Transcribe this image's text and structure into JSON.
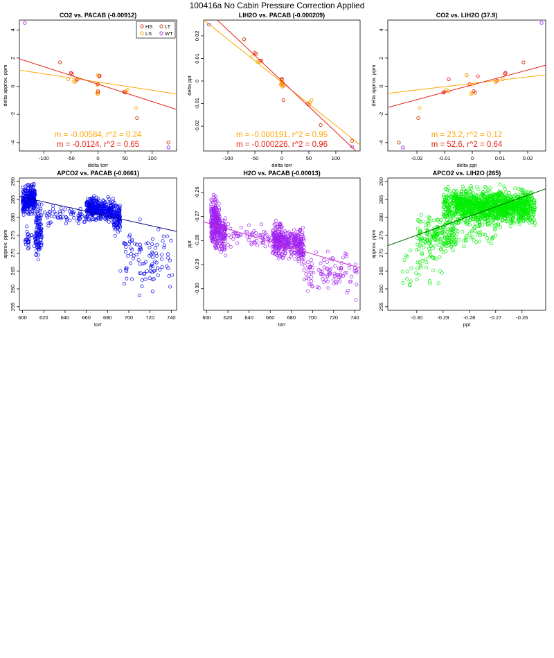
{
  "figure_title": "100416a   No Cabin Pressure Correction Applied",
  "chart_data": [
    {
      "type": "scatter",
      "title": "CO2 vs. PACAB (-0.00912)",
      "xlabel": "delta torr",
      "ylabel": "delta approx. ppm",
      "xlim": [
        -145,
        145
      ],
      "ylim": [
        -4.6,
        4.7
      ],
      "xticks": [
        -100,
        -50,
        0,
        50,
        100
      ],
      "yticks": [
        -4,
        -2,
        0,
        2,
        4
      ],
      "legend": {
        "placement": "top-right",
        "entries": [
          {
            "label": "HS",
            "color": "#e51e10"
          },
          {
            "label": "LT",
            "color": "#cc3300"
          },
          {
            "label": "LS",
            "color": "#ffa500"
          },
          {
            "label": "WT",
            "color": "#a020f0"
          }
        ]
      },
      "series": [
        {
          "color": "#e51e10",
          "points": [
            [
              -50,
              0.95
            ],
            [
              -48,
              0.9
            ],
            [
              -40,
              0.45
            ],
            [
              -38,
              0.5
            ],
            [
              0,
              0.15
            ],
            [
              2,
              0.7
            ],
            [
              3,
              0.75
            ],
            [
              0,
              -0.35
            ],
            [
              0,
              -0.45
            ],
            [
              50,
              -0.45
            ],
            [
              48,
              -0.4
            ]
          ]
        },
        {
          "color": "#ffa500",
          "points": [
            [
              -55,
              0.5
            ],
            [
              -45,
              0.35
            ],
            [
              -42,
              0.3
            ],
            [
              0,
              0.8
            ],
            [
              0,
              -0.55
            ],
            [
              -2,
              -0.5
            ],
            [
              52,
              -0.35
            ],
            [
              55,
              -0.25
            ],
            [
              70,
              -1.55
            ],
            [
              -1,
              0.1
            ]
          ]
        },
        {
          "color": "#cc3300",
          "points": [
            [
              -70,
              1.7
            ],
            [
              72,
              -2.25
            ],
            [
              130,
              -4.0
            ]
          ]
        },
        {
          "color": "#a020f0",
          "points": [
            [
              -135,
              4.5
            ],
            [
              130,
              -4.35
            ]
          ]
        }
      ],
      "fits": [
        {
          "color": "#ffa500",
          "slope": -0.00584,
          "intercept": 0.3
        },
        {
          "color": "#e51e10",
          "slope": -0.0124,
          "intercept": 0.15
        }
      ],
      "annotations": [
        {
          "text": "m = -0.00584, r^2 = 0.24",
          "color": "#ffa500"
        },
        {
          "text": "m = -0.0124, r^2 = 0.65",
          "color": "#e51e10"
        }
      ]
    },
    {
      "type": "scatter",
      "title": "LIH2O vs. PACAB (-0.000209)",
      "xlabel": "delta torr",
      "ylabel": "delta ppt",
      "xlim": [
        -145,
        145
      ],
      "ylim": [
        -0.031,
        0.027
      ],
      "xticks": [
        -100,
        -50,
        0,
        50,
        100
      ],
      "yticks": [
        -0.02,
        -0.01,
        0.0,
        0.01,
        0.02
      ],
      "series": [
        {
          "color": "#e51e10",
          "points": [
            [
              -50,
              0.0125
            ],
            [
              -48,
              0.012
            ],
            [
              -40,
              0.009
            ],
            [
              -38,
              0.009
            ],
            [
              0,
              0.0005
            ],
            [
              2,
              -0.001
            ],
            [
              3,
              -0.002
            ],
            [
              0,
              0.001
            ],
            [
              0,
              -0.001
            ],
            [
              50,
              -0.0105
            ],
            [
              48,
              -0.01
            ]
          ]
        },
        {
          "color": "#ffa500",
          "points": [
            [
              -55,
              0.011
            ],
            [
              -45,
              0.0085
            ],
            [
              -42,
              0.0085
            ],
            [
              0,
              -0.0005
            ],
            [
              0,
              -0.002
            ],
            [
              -2,
              -0.0015
            ],
            [
              52,
              -0.0095
            ],
            [
              55,
              -0.0085
            ],
            [
              1,
              -0.0025
            ],
            [
              -1,
              0.0
            ]
          ]
        },
        {
          "color": "#cc3300",
          "points": [
            [
              -70,
              0.0185
            ],
            [
              3,
              -0.0085
            ],
            [
              72,
              -0.0195
            ],
            [
              130,
              -0.0265
            ]
          ]
        },
        {
          "color": "#a020f0",
          "points": [
            [
              -135,
              0.025
            ],
            [
              130,
              -0.029
            ]
          ]
        }
      ],
      "fits": [
        {
          "color": "#ffa500",
          "slope": -0.000191,
          "intercept": -0.0006
        },
        {
          "color": "#e51e10",
          "slope": -0.000226,
          "intercept": 0.0
        }
      ],
      "annotations": [
        {
          "text": "m = -0.000191, r^2 = 0.95",
          "color": "#ffa500"
        },
        {
          "text": "m = -0.000226, r^2 = 0.96",
          "color": "#e51e10"
        }
      ]
    },
    {
      "type": "scatter",
      "title": "CO2 vs. LIH2O (37.9)",
      "xlabel": "delta ppt",
      "ylabel": "delta approx. ppm",
      "xlim": [
        -0.0305,
        0.0265
      ],
      "ylim": [
        -4.6,
        4.7
      ],
      "xticks": [
        -0.02,
        -0.01,
        0.0,
        0.01,
        0.02
      ],
      "yticks": [
        -4,
        -2,
        0,
        2,
        4
      ],
      "series": [
        {
          "color": "#e51e10",
          "points": [
            [
              -0.0105,
              -0.45
            ],
            [
              -0.01,
              -0.4
            ],
            [
              -0.0085,
              0.5
            ],
            [
              -0.002,
              0.8
            ],
            [
              -0.001,
              0.15
            ],
            [
              0.001,
              -0.45
            ],
            [
              0.0005,
              -0.35
            ],
            [
              0.009,
              0.4
            ],
            [
              0.012,
              0.95
            ],
            [
              0.0118,
              0.9
            ],
            [
              0.002,
              0.7
            ]
          ]
        },
        {
          "color": "#ffa500",
          "points": [
            [
              -0.0085,
              -0.35
            ],
            [
              -0.0095,
              -0.25
            ],
            [
              -0.002,
              0.8
            ],
            [
              -0.0005,
              -0.55
            ],
            [
              0.0,
              -0.5
            ],
            [
              0.011,
              0.5
            ],
            [
              0.0085,
              0.35
            ],
            [
              0.0085,
              0.3
            ],
            [
              0.0,
              0.1
            ],
            [
              -0.019,
              -1.55
            ]
          ]
        },
        {
          "color": "#cc3300",
          "points": [
            [
              -0.0265,
              -4.0
            ],
            [
              -0.0195,
              -2.25
            ],
            [
              0.0185,
              1.7
            ]
          ]
        },
        {
          "color": "#a020f0",
          "points": [
            [
              -0.025,
              -4.35
            ],
            [
              0.025,
              4.5
            ]
          ]
        }
      ],
      "fits": [
        {
          "color": "#ffa500",
          "slope": 23.2,
          "intercept": 0.2
        },
        {
          "color": "#e51e10",
          "slope": 52.6,
          "intercept": 0.1
        }
      ],
      "annotations": [
        {
          "text": "m = 23.2, r^2 = 0.12",
          "color": "#ffa500"
        },
        {
          "text": "m = 52.6, r^2 = 0.64",
          "color": "#e51e10"
        }
      ]
    },
    {
      "type": "scatter",
      "title": "APCO2 vs. PACAB (-0.0661)",
      "xlabel": "torr",
      "ylabel": "approx. ppm",
      "xlim": [
        597,
        745
      ],
      "ylim": [
        254,
        291
      ],
      "xticks": [
        600,
        620,
        640,
        660,
        680,
        700,
        720,
        740
      ],
      "yticks": [
        255,
        260,
        265,
        270,
        275,
        280,
        285,
        290
      ],
      "series": [
        {
          "color": "#0000ee",
          "clusters": [
            [
              600,
              612,
              280,
              290,
              260
            ],
            [
              612,
              618,
              266,
              286,
              90
            ],
            [
              602,
              616,
              270,
              278,
              40
            ],
            [
              620,
              660,
              276,
              284,
              60
            ],
            [
              660,
              672,
              278,
              287,
              180
            ],
            [
              672,
              686,
              278,
              286,
              150
            ],
            [
              686,
              692,
              274,
              286,
              90
            ],
            [
              692,
              742,
              256,
              281,
              100
            ]
          ]
        }
      ],
      "fits": [
        {
          "color": "#000080",
          "slope": -0.0661,
          "intercept": 325.3
        }
      ]
    },
    {
      "type": "scatter",
      "title": "H2O vs. PACAB (-0.00013)",
      "xlabel": "torr",
      "ylabel": "ppt",
      "xlim": [
        597,
        745
      ],
      "ylim": [
        -0.309,
        -0.254
      ],
      "xticks": [
        600,
        620,
        640,
        660,
        680,
        700,
        720,
        740
      ],
      "yticks": [
        -0.3,
        -0.29,
        -0.28,
        -0.27,
        -0.26
      ],
      "series": [
        {
          "color": "#a020f0",
          "clusters": [
            [
              604,
              612,
              -0.287,
              -0.259,
              260
            ],
            [
              612,
              618,
              -0.287,
              -0.268,
              90
            ],
            [
              618,
              660,
              -0.285,
              -0.272,
              60
            ],
            [
              662,
              672,
              -0.29,
              -0.269,
              160
            ],
            [
              672,
              686,
              -0.289,
              -0.273,
              130
            ],
            [
              686,
              692,
              -0.293,
              -0.271,
              90
            ],
            [
              692,
              742,
              -0.306,
              -0.281,
              100
            ]
          ]
        }
      ],
      "fits": [
        {
          "color": "#cc33cc",
          "slope": -0.00013,
          "intercept": -0.1946
        }
      ]
    },
    {
      "type": "scatter",
      "title": "APCO2 vs. LIH2O (265)",
      "xlabel": "ppt",
      "ylabel": "approx. ppm",
      "xlim": [
        -0.311,
        -0.251
      ],
      "ylim": [
        254,
        291
      ],
      "xticks": [
        -0.3,
        -0.29,
        -0.28,
        -0.27,
        -0.26
      ],
      "yticks": [
        255,
        260,
        265,
        270,
        275,
        280,
        285,
        290
      ],
      "series": [
        {
          "color": "#00ee00",
          "clusters": [
            [
              -0.29,
              -0.255,
              276,
              290,
              900
            ],
            [
              -0.285,
              -0.258,
              278,
              288,
              500
            ],
            [
              -0.3,
              -0.285,
              268,
              282,
              140
            ],
            [
              -0.306,
              -0.29,
              258,
              275,
              40
            ],
            [
              -0.296,
              -0.27,
              270,
              280,
              80
            ]
          ]
        }
      ],
      "fits": [
        {
          "color": "#006400",
          "slope": 265,
          "intercept": 354.5
        }
      ]
    }
  ]
}
